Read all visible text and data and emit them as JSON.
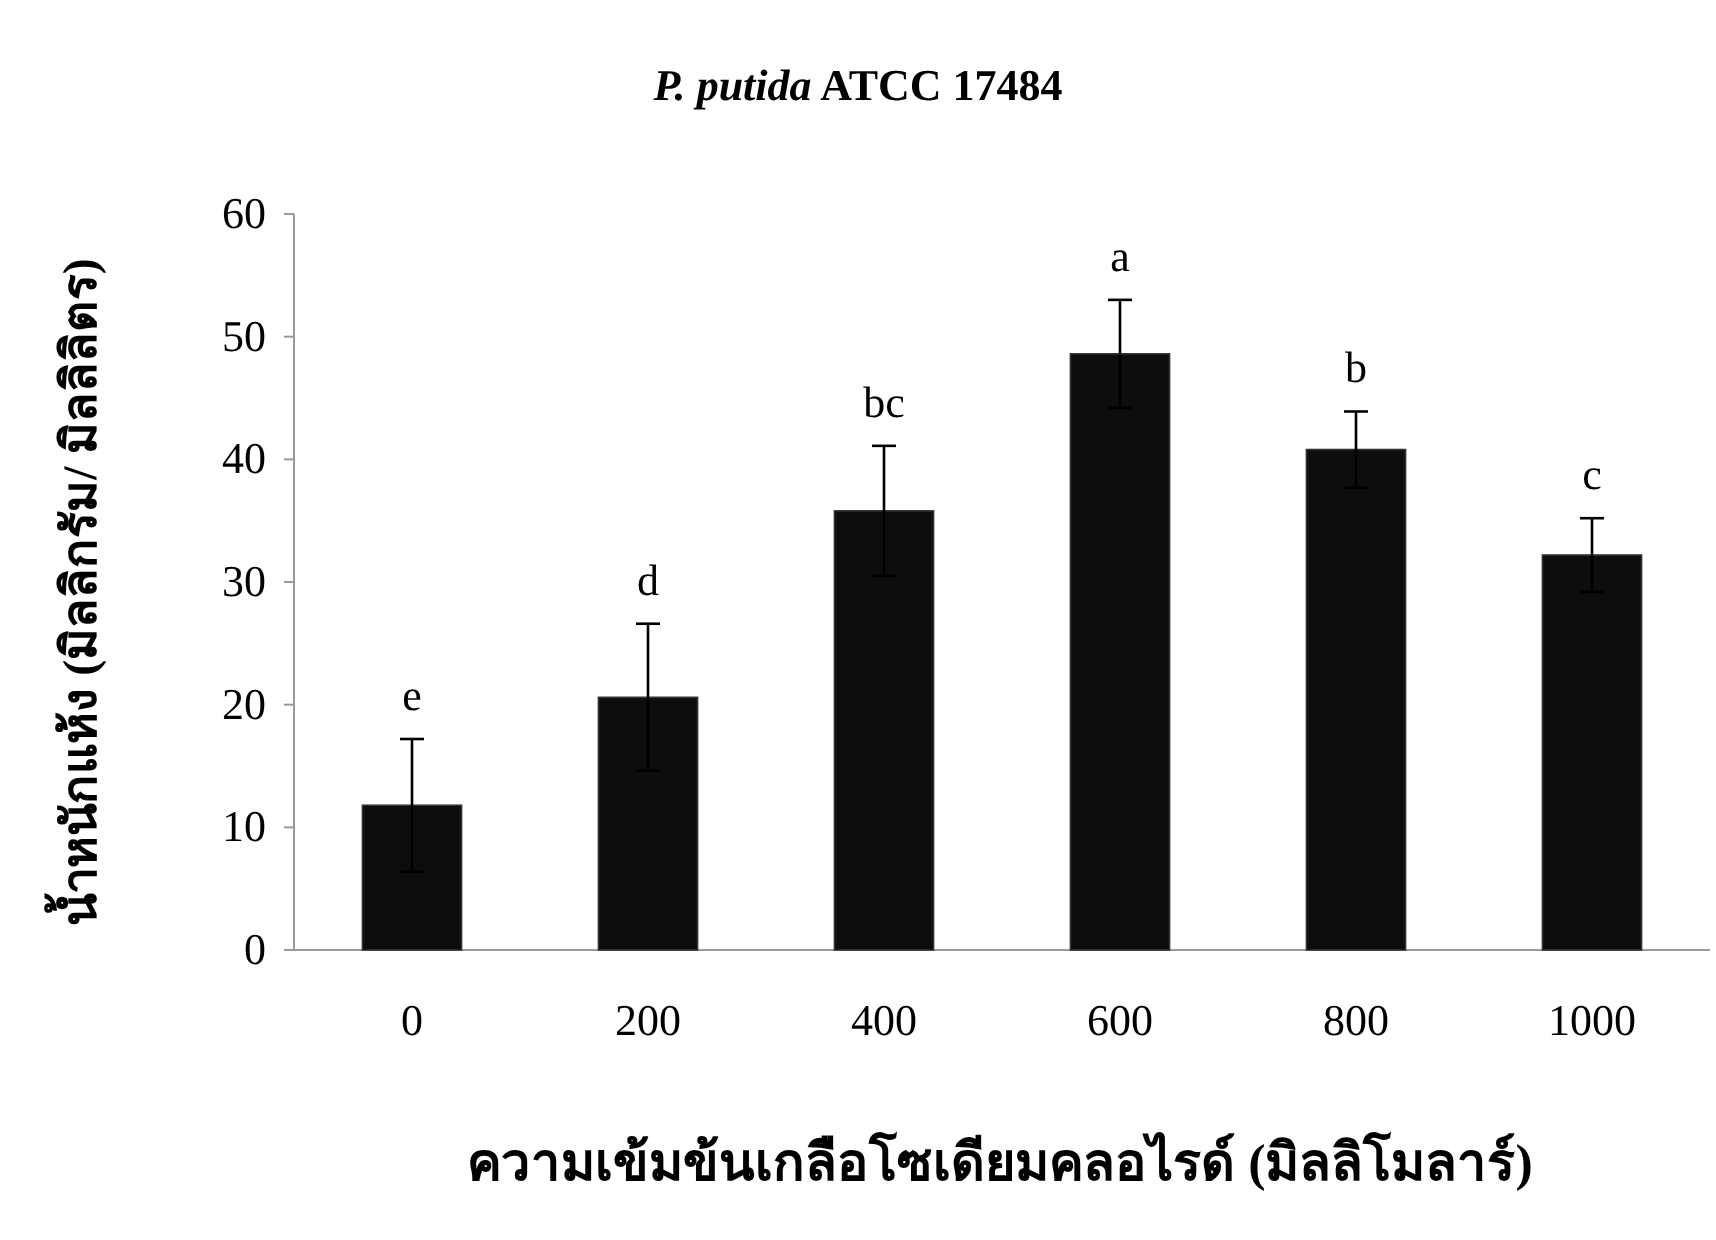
{
  "chart_data": {
    "type": "bar",
    "title": "P. putida ATCC 17484",
    "xlabel": "ความเข้มข้นเกลือโซเดียมคลอไรด์ (มิลลิโมลาร์)",
    "ylabel": "น้ำหนักแห้ง (มิลลิกรัม/ มิลลิลิตร)",
    "categories": [
      "0",
      "200",
      "400",
      "600",
      "800",
      "1000"
    ],
    "values": [
      11.8,
      20.6,
      35.8,
      48.6,
      40.8,
      32.2
    ],
    "errors": [
      5.4,
      6.0,
      5.3,
      4.4,
      3.1,
      3.0
    ],
    "color": "#0d0d0d",
    "ylim": [
      0,
      60
    ],
    "yticks": [
      0,
      10,
      20,
      30,
      40,
      50,
      60
    ],
    "grid": false,
    "annotations": [
      "e",
      "d",
      "bc",
      "a",
      "b",
      "c"
    ]
  }
}
